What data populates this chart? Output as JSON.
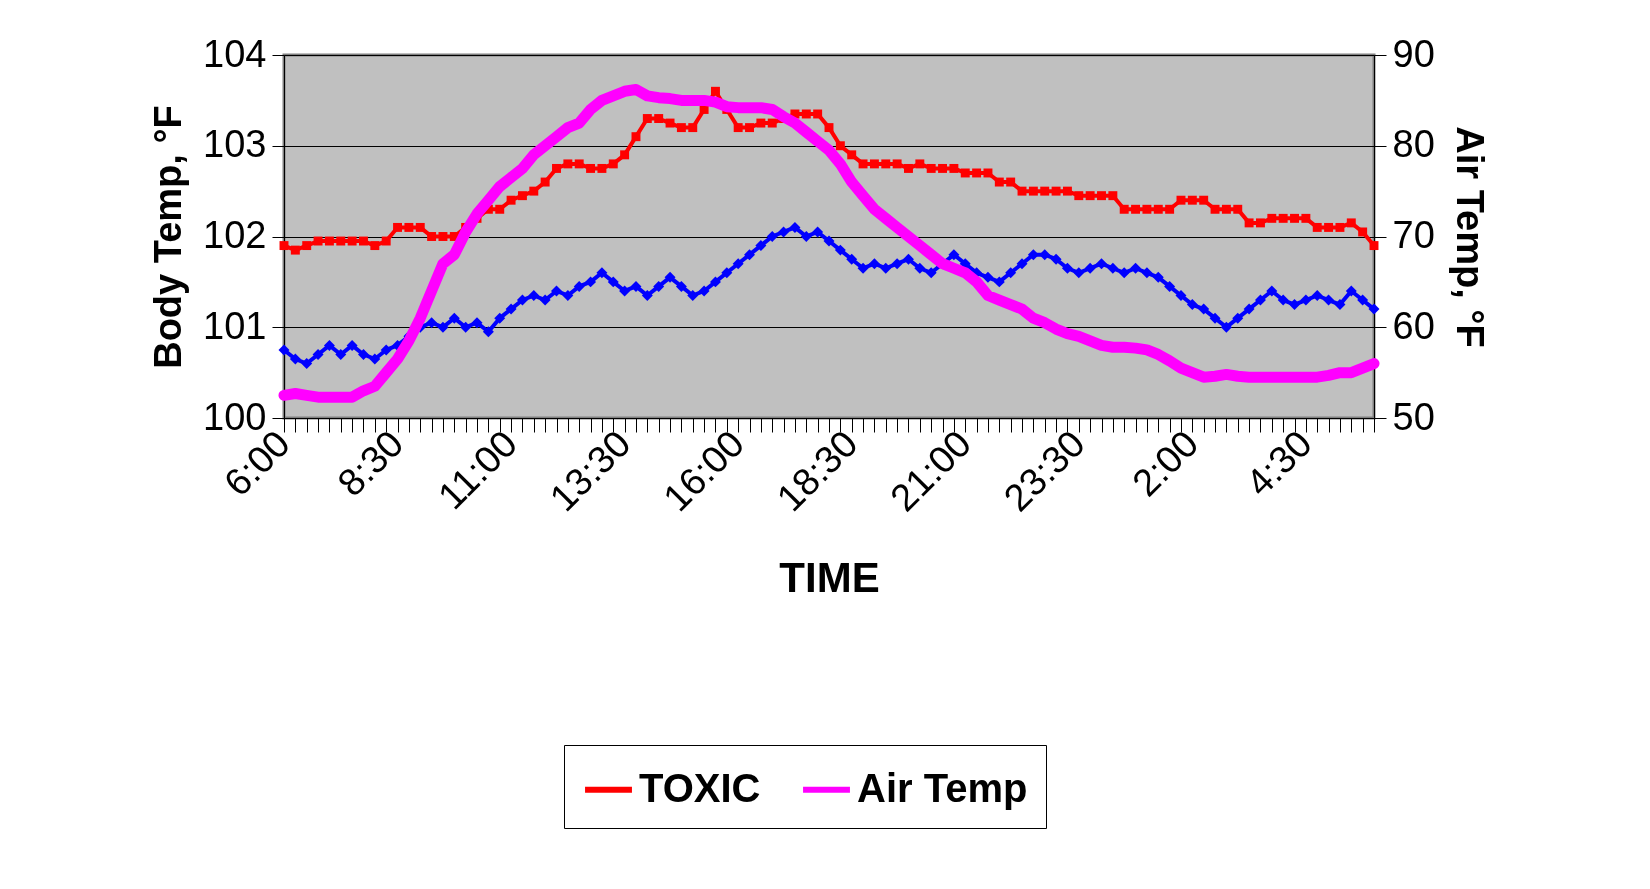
{
  "chart_data": {
    "type": "line",
    "xlabel": "TIME",
    "ylabel": "Body Temp, °F",
    "y2label": "Air Temp, °F",
    "categories": [
      "6:00",
      null,
      null,
      null,
      null,
      null,
      null,
      null,
      null,
      null,
      "8:30",
      null,
      null,
      null,
      null,
      null,
      null,
      null,
      null,
      null,
      "11:00",
      null,
      null,
      null,
      null,
      null,
      null,
      null,
      null,
      null,
      "13:30",
      null,
      null,
      null,
      null,
      null,
      null,
      null,
      null,
      null,
      "16:00",
      null,
      null,
      null,
      null,
      null,
      null,
      null,
      null,
      null,
      "18:30",
      null,
      null,
      null,
      null,
      null,
      null,
      null,
      null,
      null,
      "21:00",
      null,
      null,
      null,
      null,
      null,
      null,
      null,
      null,
      null,
      "23:30",
      null,
      null,
      null,
      null,
      null,
      null,
      null,
      null,
      null,
      "2:00",
      null,
      null,
      null,
      null,
      null,
      null,
      null,
      null,
      null,
      "4:30",
      null,
      null,
      null,
      null,
      null,
      null
    ],
    "series": [
      {
        "name": "TOXIC",
        "color": "#ff0000",
        "marker": "square",
        "values": [
          101.9,
          101.85,
          101.9,
          101.95,
          101.95,
          101.95,
          101.95,
          101.95,
          101.9,
          101.95,
          102.1,
          102.1,
          102.1,
          102.0,
          102.0,
          102.0,
          102.1,
          102.2,
          102.3,
          102.3,
          102.4,
          102.45,
          102.5,
          102.6,
          102.75,
          102.8,
          102.8,
          102.75,
          102.75,
          102.8,
          102.9,
          103.1,
          103.3,
          103.3,
          103.25,
          103.2,
          103.2,
          103.4,
          103.6,
          103.4,
          103.2,
          103.2,
          103.25,
          103.25,
          103.3,
          103.35,
          103.35,
          103.35,
          103.2,
          103.0,
          102.9,
          102.8,
          102.8,
          102.8,
          102.8,
          102.75,
          102.8,
          102.75,
          102.75,
          102.75,
          102.7,
          102.7,
          102.7,
          102.6,
          102.6,
          102.5,
          102.5,
          102.5,
          102.5,
          102.5,
          102.45,
          102.45,
          102.45,
          102.45,
          102.3,
          102.3,
          102.3,
          102.3,
          102.3,
          102.4,
          102.4,
          102.4,
          102.3,
          102.3,
          102.3,
          102.15,
          102.15,
          102.2,
          102.2,
          102.2,
          102.2,
          102.1,
          102.1,
          102.1,
          102.15,
          102.05,
          101.9
        ]
      },
      {
        "color": "#0000ff",
        "marker": "diamond",
        "values": [
          100.75,
          100.65,
          100.6,
          100.7,
          100.8,
          100.7,
          100.8,
          100.7,
          100.65,
          100.75,
          100.8,
          100.9,
          101.0,
          101.05,
          101.0,
          101.1,
          101.0,
          101.05,
          100.95,
          101.1,
          101.2,
          101.3,
          101.35,
          101.3,
          101.4,
          101.35,
          101.45,
          101.5,
          101.6,
          101.5,
          101.4,
          101.45,
          101.35,
          101.45,
          101.55,
          101.45,
          101.35,
          101.4,
          101.5,
          101.6,
          101.7,
          101.8,
          101.9,
          102.0,
          102.05,
          102.1,
          102.0,
          102.05,
          101.95,
          101.85,
          101.75,
          101.65,
          101.7,
          101.65,
          101.7,
          101.75,
          101.65,
          101.6,
          101.7,
          101.8,
          101.7,
          101.6,
          101.55,
          101.5,
          101.6,
          101.7,
          101.8,
          101.8,
          101.75,
          101.65,
          101.6,
          101.65,
          101.7,
          101.65,
          101.6,
          101.65,
          101.6,
          101.55,
          101.45,
          101.35,
          101.25,
          101.2,
          101.1,
          101.0,
          101.1,
          101.2,
          101.3,
          101.4,
          101.3,
          101.25,
          101.3,
          101.35,
          101.3,
          101.25,
          101.4,
          101.3,
          101.2
        ]
      },
      {
        "name": "Air Temp",
        "color": "#ff00ff",
        "marker": "none",
        "axis": "y2",
        "values": [
          52.5,
          52.7,
          52.5,
          52.3,
          52.3,
          52.3,
          52.3,
          53,
          53.5,
          55,
          56.5,
          58.5,
          61,
          64,
          67,
          68,
          70.5,
          72.5,
          74,
          75.5,
          76.5,
          77.5,
          79,
          80,
          81,
          82,
          82.5,
          84,
          85,
          85.5,
          86,
          86.2,
          85.5,
          85.3,
          85.2,
          85,
          85,
          85,
          84.8,
          84.3,
          84.2,
          84.2,
          84.2,
          84,
          83.2,
          82.5,
          81.5,
          80.5,
          79.5,
          78,
          76,
          74.5,
          73,
          72,
          71,
          70,
          69,
          68,
          67,
          66.5,
          66,
          65,
          63.5,
          63,
          62.5,
          62,
          61,
          60.5,
          59.8,
          59.3,
          59,
          58.5,
          58,
          57.8,
          57.8,
          57.7,
          57.5,
          57,
          56.3,
          55.5,
          55,
          54.5,
          54.6,
          54.8,
          54.6,
          54.5,
          54.5,
          54.5,
          54.5,
          54.5,
          54.5,
          54.5,
          54.7,
          55,
          55,
          55.5,
          56
        ]
      }
    ],
    "ylim": [
      100,
      104
    ],
    "yticks": [
      100,
      101,
      102,
      103,
      104
    ],
    "y2lim": [
      50,
      90
    ],
    "y2ticks": [
      50,
      60,
      70,
      80,
      90
    ],
    "grid": "y",
    "legend": "bottom"
  }
}
